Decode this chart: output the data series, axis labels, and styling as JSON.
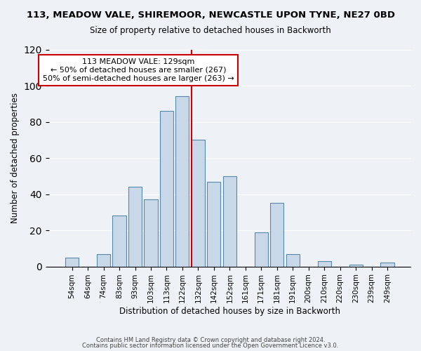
{
  "title": "113, MEADOW VALE, SHIREMOOR, NEWCASTLE UPON TYNE, NE27 0BD",
  "subtitle": "Size of property relative to detached houses in Backworth",
  "xlabel": "Distribution of detached houses by size in Backworth",
  "ylabel": "Number of detached properties",
  "bar_labels": [
    "54sqm",
    "64sqm",
    "74sqm",
    "83sqm",
    "93sqm",
    "103sqm",
    "113sqm",
    "122sqm",
    "132sqm",
    "142sqm",
    "152sqm",
    "161sqm",
    "171sqm",
    "181sqm",
    "191sqm",
    "200sqm",
    "210sqm",
    "220sqm",
    "230sqm",
    "239sqm",
    "249sqm"
  ],
  "bar_values": [
    5,
    0,
    7,
    28,
    44,
    37,
    86,
    94,
    70,
    47,
    50,
    0,
    19,
    35,
    7,
    0,
    3,
    0,
    1,
    0,
    2
  ],
  "bar_color": "#c8d8e8",
  "bar_edge_color": "#5588aa",
  "ylim": [
    0,
    120
  ],
  "yticks": [
    0,
    20,
    40,
    60,
    80,
    100,
    120
  ],
  "vline_color": "#cc0000",
  "vline_x": 7.575,
  "annotation_title": "113 MEADOW VALE: 129sqm",
  "annotation_line1": "← 50% of detached houses are smaller (267)",
  "annotation_line2": "50% of semi-detached houses are larger (263) →",
  "annotation_box_color": "#ffffff",
  "annotation_box_edge": "#cc0000",
  "footer1": "Contains HM Land Registry data © Crown copyright and database right 2024.",
  "footer2": "Contains public sector information licensed under the Open Government Licence v3.0.",
  "background_color": "#eef2f7",
  "plot_background": "#eef2f7"
}
